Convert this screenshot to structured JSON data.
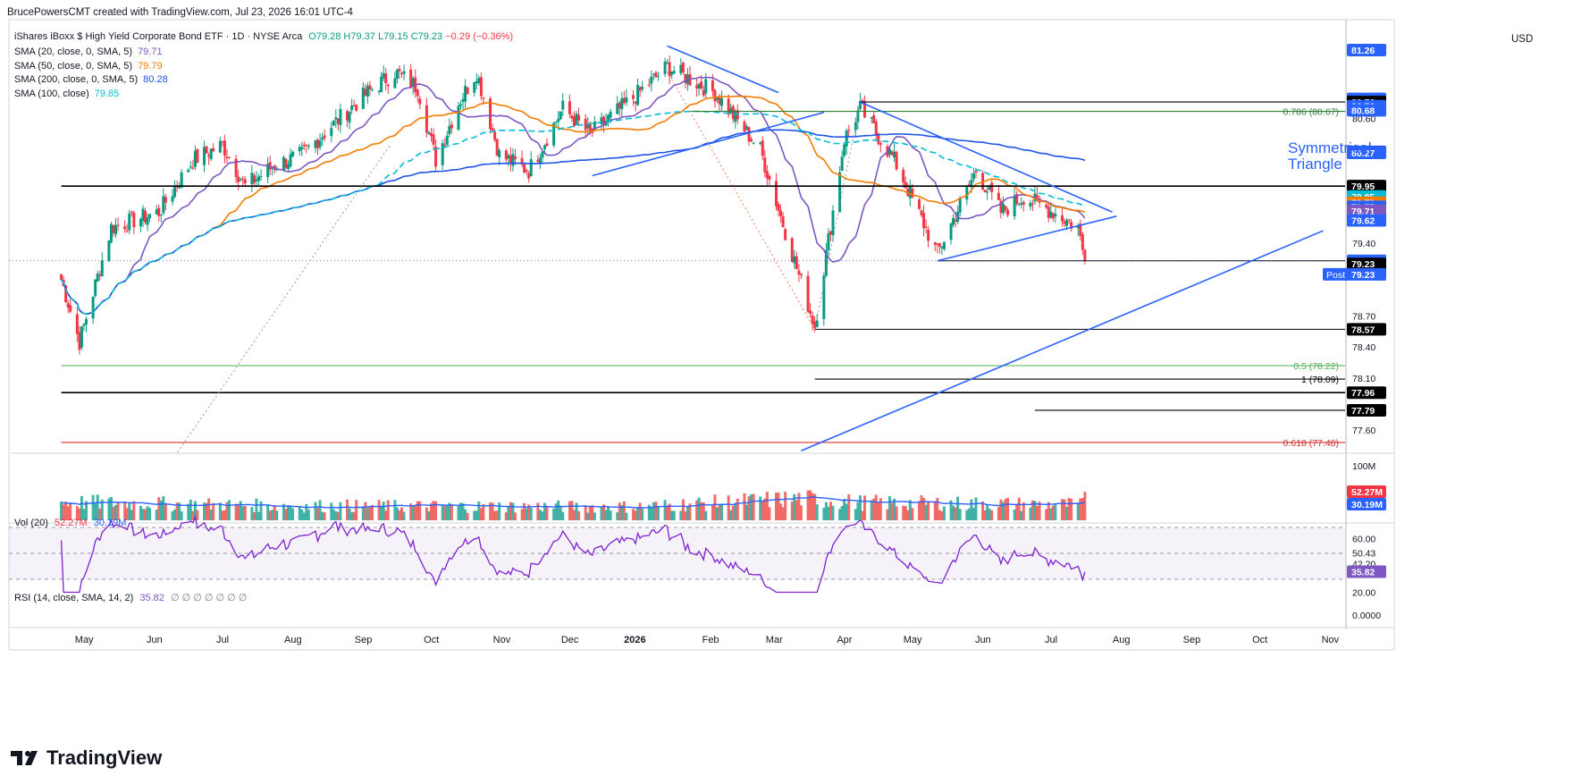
{
  "header": {
    "attribution": "BrucePowersCMT created with TradingView.com, Jul 23, 2026 16:01 UTC-4",
    "currency": "USD",
    "instrument": "iShares iBoxx $ High Yield Corporate Bond ETF · 1D · NYSE Arca",
    "ohlc": {
      "O": "O79.28",
      "H": "H79.37",
      "L": "L79.15",
      "C": "C79.23",
      "change": "−0.29 (−0.36%)"
    }
  },
  "indicators": [
    {
      "label": "SMA (20, close, 0, SMA, 5)",
      "value": "79.71",
      "color": "#7e57c2"
    },
    {
      "label": "SMA (50, close, 0, SMA, 5)",
      "value": "79.79",
      "color": "#f57c00"
    },
    {
      "label": "SMA (200, close, 0, SMA, 5)",
      "value": "80.28",
      "color": "#1e53e5"
    },
    {
      "label": "SMA (100, close)",
      "value": "79.85",
      "color": "#00bcd4"
    }
  ],
  "volume_legend": {
    "label": "Vol (20)",
    "value": "52.27M",
    "ma_value": "30.19M"
  },
  "rsi_legend": {
    "label": "RSI (14, close, SMA, 14, 2)",
    "value": "35.82",
    "extra": "∅ ∅ ∅ ∅ ∅ ∅ ∅"
  },
  "annotation": {
    "line1": "Symmetrical",
    "line2": "Triangle"
  },
  "brand": {
    "name": "TradingView"
  },
  "chart_data": {
    "type": "candlestick",
    "price_axis_ticks": [
      "80.60",
      "79.40",
      "78.70",
      "78.40",
      "78.10",
      "77.60"
    ],
    "price_axis_labels": [
      {
        "text": "81.26",
        "price": 81.26,
        "bg": "#2962ff",
        "fg": "#ffffff"
      },
      {
        "text": "80.79",
        "price": 80.79,
        "bg": "#2962ff",
        "fg": "#ffffff"
      },
      {
        "text": "80.76",
        "price": 80.76,
        "bg": "#000000",
        "fg": "#ffffff"
      },
      {
        "text": "80.76",
        "price": 80.72,
        "bg": "#2962ff",
        "fg": "#ffffff"
      },
      {
        "text": "80.68",
        "price": 80.68,
        "bg": "#2962ff",
        "fg": "#ffffff"
      },
      {
        "text": "80.28",
        "price": 80.28,
        "bg": "#1e53e5",
        "fg": "#ffffff"
      },
      {
        "text": "80.27",
        "price": 80.27,
        "bg": "#2962ff",
        "fg": "#ffffff"
      },
      {
        "text": "79.95",
        "price": 79.95,
        "bg": "#000000",
        "fg": "#ffffff"
      },
      {
        "text": "79.85",
        "price": 79.85,
        "bg": "#00bcd4",
        "fg": "#ffffff"
      },
      {
        "text": "79.79",
        "price": 79.79,
        "bg": "#f57c00",
        "fg": "#ffffff"
      },
      {
        "text": "79.75",
        "price": 79.75,
        "bg": "#2962ff",
        "fg": "#ffffff"
      },
      {
        "text": "79.71",
        "price": 79.71,
        "bg": "#7e57c2",
        "fg": "#ffffff"
      },
      {
        "text": "79.62",
        "price": 79.62,
        "bg": "#2962ff",
        "fg": "#ffffff"
      },
      {
        "text": "79.23",
        "price": 79.23,
        "bg": "#2962ff",
        "fg": "#ffffff"
      },
      {
        "text": "79.23",
        "price": 79.2,
        "bg": "#000000",
        "fg": "#ffffff"
      },
      {
        "text": "78.57",
        "price": 78.57,
        "bg": "#000000",
        "fg": "#ffffff"
      },
      {
        "text": "77.96",
        "price": 77.96,
        "bg": "#000000",
        "fg": "#ffffff"
      },
      {
        "text": "77.79",
        "price": 77.79,
        "bg": "#000000",
        "fg": "#ffffff"
      }
    ],
    "post_label": {
      "tag": "Post",
      "text": "79.23"
    },
    "x_labels": [
      "May",
      "Jun",
      "Jul",
      "Aug",
      "Sep",
      "Oct",
      "Nov",
      "Dec",
      "2026",
      "Feb",
      "Mar",
      "Apr",
      "May",
      "Jun",
      "Jul",
      "Aug",
      "Sep",
      "Oct",
      "Nov"
    ],
    "levels": [
      {
        "price": 79.95,
        "label": "",
        "color": "#000000",
        "from_date": "2025-04-28"
      },
      {
        "price": 77.96,
        "label": "",
        "color": "#000000",
        "from_date": "2025-04-28"
      },
      {
        "price": 78.57,
        "label": "",
        "color": "#000000",
        "from_date": "2026-03-26"
      },
      {
        "price": 79.23,
        "label": "",
        "color": "#000000",
        "from_date": "2026-05-19"
      },
      {
        "price": 80.76,
        "label": "",
        "color": "#000000",
        "from_date": "2026-04-15"
      },
      {
        "price": 77.79,
        "label": "",
        "color": "#000000",
        "from_date": "2026-07-01"
      },
      {
        "price": 80.67,
        "label": "0.786 (80.67)",
        "color": "#2e7d32",
        "from_date": "2026-01-30"
      },
      {
        "price": 78.22,
        "label": "0.5 (78.22)",
        "color": "#4caf50",
        "from_date": "2025-04-28"
      },
      {
        "price": 78.09,
        "label": "1 (78.09)",
        "color": "#000000",
        "from_date": "2026-03-26"
      },
      {
        "price": 77.48,
        "label": "0.618 (77.48)",
        "color": "#d32f2f",
        "from_date": "2025-04-28"
      }
    ],
    "trendlines": [
      {
        "from": [
          "2026-01-20",
          81.3
        ],
        "to": [
          "2026-03-10",
          80.85
        ]
      },
      {
        "from": [
          "2025-12-18",
          80.05
        ],
        "to": [
          "2026-03-30",
          80.66
        ]
      },
      {
        "from": [
          "2026-04-15",
          80.76
        ],
        "to": [
          "2026-08-04",
          79.7
        ]
      },
      {
        "from": [
          "2026-05-19",
          79.23
        ],
        "to": [
          "2026-08-06",
          79.66
        ]
      },
      {
        "from": [
          "2026-03-20",
          77.4
        ],
        "to": [
          "2026-11-05",
          79.52
        ]
      }
    ],
    "right_axis_volume": [
      "100M"
    ],
    "volume_labels": [
      {
        "text": "52.27M",
        "bg": "#f23645"
      },
      {
        "text": "30.19M",
        "bg": "#2962ff"
      }
    ],
    "rsi_axis": [
      "60.00",
      "50.43",
      "42.20",
      "20.00",
      "0.0000"
    ],
    "rsi_label": {
      "text": "35.82",
      "bg": "#7e57c2"
    },
    "anchors": [
      {
        "date": "2025-04-28",
        "price": 79.05
      },
      {
        "date": "2025-05-06",
        "price": 78.45
      },
      {
        "date": "2025-05-20",
        "price": 79.55
      },
      {
        "date": "2025-06-10",
        "price": 79.7
      },
      {
        "date": "2025-06-25",
        "price": 80.2
      },
      {
        "date": "2025-07-08",
        "price": 80.35
      },
      {
        "date": "2025-07-18",
        "price": 79.95
      },
      {
        "date": "2025-07-31",
        "price": 80.15
      },
      {
        "date": "2025-08-12",
        "price": 80.25
      },
      {
        "date": "2025-08-26",
        "price": 80.55
      },
      {
        "date": "2025-09-10",
        "price": 80.85
      },
      {
        "date": "2025-09-22",
        "price": 81.05
      },
      {
        "date": "2025-10-02",
        "price": 80.9
      },
      {
        "date": "2025-10-10",
        "price": 80.2
      },
      {
        "date": "2025-10-20",
        "price": 80.75
      },
      {
        "date": "2025-10-28",
        "price": 81.05
      },
      {
        "date": "2025-11-07",
        "price": 80.25
      },
      {
        "date": "2025-11-20",
        "price": 80.1
      },
      {
        "date": "2025-12-05",
        "price": 80.7
      },
      {
        "date": "2025-12-17",
        "price": 80.45
      },
      {
        "date": "2026-01-05",
        "price": 80.8
      },
      {
        "date": "2026-01-20",
        "price": 81.1
      },
      {
        "date": "2026-02-10",
        "price": 80.85
      },
      {
        "date": "2026-03-02",
        "price": 80.3
      },
      {
        "date": "2026-03-16",
        "price": 79.3
      },
      {
        "date": "2026-03-26",
        "price": 78.6
      },
      {
        "date": "2026-04-08",
        "price": 80.4
      },
      {
        "date": "2026-04-15",
        "price": 80.7
      },
      {
        "date": "2026-04-30",
        "price": 80.2
      },
      {
        "date": "2026-05-19",
        "price": 79.3
      },
      {
        "date": "2026-06-05",
        "price": 80.1
      },
      {
        "date": "2026-06-16",
        "price": 79.7
      },
      {
        "date": "2026-06-26",
        "price": 79.85
      },
      {
        "date": "2026-07-09",
        "price": 79.7
      },
      {
        "date": "2026-07-20",
        "price": 79.55
      },
      {
        "date": "2026-07-23",
        "price": 79.23
      }
    ],
    "volume_axis_max": 100,
    "volume_anchors": [
      {
        "date": "2025-04-28",
        "value": 35
      },
      {
        "date": "2025-07-31",
        "value": 28
      },
      {
        "date": "2026-01-05",
        "value": 26
      },
      {
        "date": "2026-03-20",
        "value": 42
      },
      {
        "date": "2026-04-15",
        "value": 34
      },
      {
        "date": "2026-07-23",
        "value": 30
      }
    ],
    "rsi_range": [
      0,
      100
    ],
    "rsi_band": [
      30,
      70
    ]
  }
}
